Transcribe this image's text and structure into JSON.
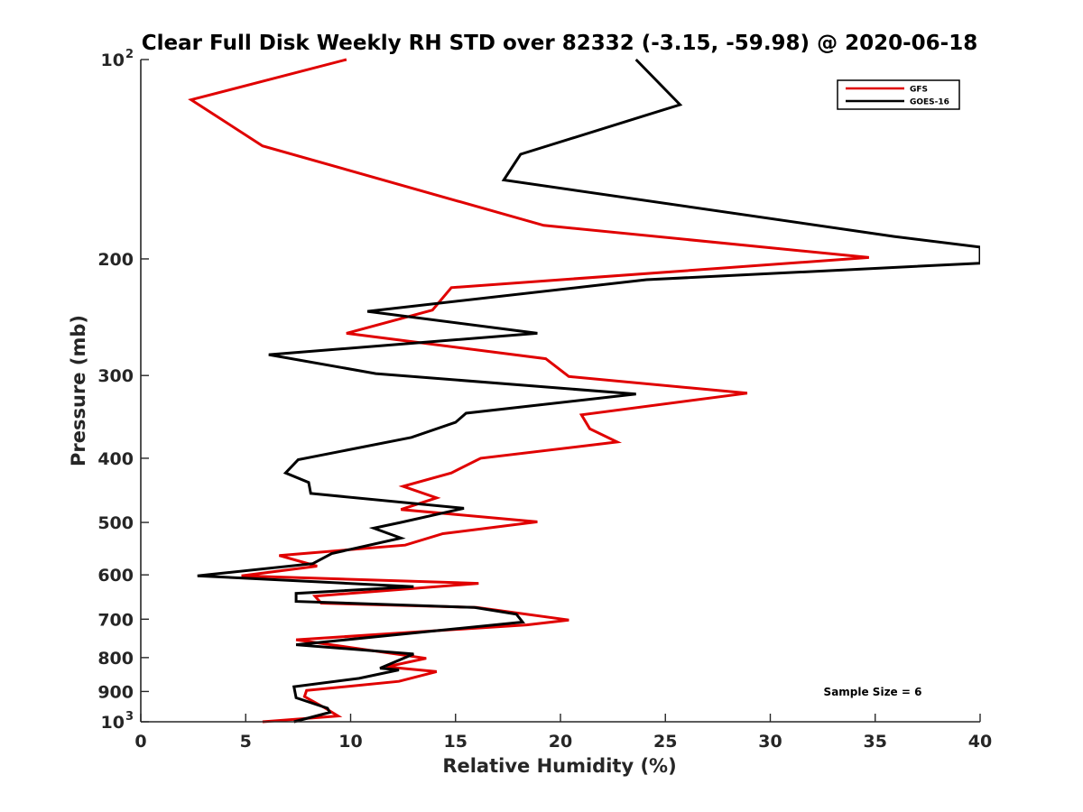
{
  "chart_data": {
    "type": "line",
    "title": "Clear Full Disk Weekly RH STD over 82332 (-3.15, -59.98) @ 2020-06-18",
    "xlabel": "Relative Humidity (%)",
    "ylabel": "Pressure (mb)",
    "xlim": [
      0,
      40
    ],
    "ylim": [
      100,
      1000
    ],
    "y_scale": "log",
    "y_reversed": true,
    "grid": false,
    "legend_position": "top-right",
    "xticks": [
      0,
      5,
      10,
      15,
      20,
      25,
      30,
      35,
      40
    ],
    "yticks": [
      {
        "value": 100,
        "label": "10",
        "sup": "2"
      },
      {
        "value": 200,
        "label": "200",
        "sup": ""
      },
      {
        "value": 300,
        "label": "300",
        "sup": ""
      },
      {
        "value": 400,
        "label": "400",
        "sup": ""
      },
      {
        "value": 500,
        "label": "500",
        "sup": ""
      },
      {
        "value": 600,
        "label": "600",
        "sup": ""
      },
      {
        "value": 700,
        "label": "700",
        "sup": ""
      },
      {
        "value": 800,
        "label": "800",
        "sup": ""
      },
      {
        "value": 900,
        "label": "900",
        "sup": ""
      },
      {
        "value": 1000,
        "label": "10",
        "sup": "3"
      }
    ],
    "series": [
      {
        "name": "GFS",
        "color": "#e00000",
        "points": [
          [
            9.8,
            100
          ],
          [
            2.4,
            115
          ],
          [
            5.8,
            135
          ],
          [
            19.2,
            178
          ],
          [
            34.7,
            199
          ],
          [
            14.8,
            221
          ],
          [
            13.9,
            239
          ],
          [
            9.8,
            259
          ],
          [
            19.3,
            283
          ],
          [
            20.4,
            301
          ],
          [
            28.9,
            319
          ],
          [
            21.0,
            344
          ],
          [
            21.4,
            361
          ],
          [
            22.7,
            378
          ],
          [
            16.2,
            400
          ],
          [
            14.8,
            421
          ],
          [
            12.5,
            441
          ],
          [
            14.1,
            459
          ],
          [
            12.4,
            478
          ],
          [
            18.9,
            499
          ],
          [
            14.4,
            520
          ],
          [
            12.6,
            541
          ],
          [
            6.6,
            561
          ],
          [
            8.4,
            582
          ],
          [
            4.8,
            602
          ],
          [
            16.1,
            618
          ],
          [
            8.3,
            646
          ],
          [
            8.6,
            662
          ],
          [
            16.0,
            672
          ],
          [
            20.4,
            702
          ],
          [
            18.4,
            714
          ],
          [
            7.4,
            752
          ],
          [
            13.6,
            802
          ],
          [
            11.7,
            826
          ],
          [
            14.1,
            840
          ],
          [
            12.3,
            869
          ],
          [
            7.9,
            897
          ],
          [
            7.8,
            916
          ],
          [
            8.8,
            954
          ],
          [
            9.4,
            980
          ],
          [
            5.8,
            1000
          ]
        ]
      },
      {
        "name": "GOES-16",
        "color": "#000000",
        "points": [
          [
            23.6,
            100
          ],
          [
            25.7,
            117
          ],
          [
            18.1,
            139
          ],
          [
            17.3,
            152
          ],
          [
            35.9,
            185
          ],
          [
            40.0,
            192
          ],
          [
            40.0,
            203
          ],
          [
            24.1,
            215
          ],
          [
            10.8,
            240
          ],
          [
            18.9,
            259
          ],
          [
            6.1,
            279
          ],
          [
            11.2,
            298
          ],
          [
            23.6,
            320
          ],
          [
            15.5,
            342
          ],
          [
            15.0,
            353
          ],
          [
            12.9,
            372
          ],
          [
            7.5,
            402
          ],
          [
            6.9,
            421
          ],
          [
            8.0,
            435
          ],
          [
            8.1,
            452
          ],
          [
            15.4,
            476
          ],
          [
            12.4,
            500
          ],
          [
            11.1,
            510
          ],
          [
            12.4,
            528
          ],
          [
            9.1,
            557
          ],
          [
            8.2,
            577
          ],
          [
            2.7,
            602
          ],
          [
            13.0,
            625
          ],
          [
            7.4,
            640
          ],
          [
            7.4,
            658
          ],
          [
            15.9,
            672
          ],
          [
            17.9,
            688
          ],
          [
            18.2,
            707
          ],
          [
            7.4,
            765
          ],
          [
            13.0,
            790
          ],
          [
            11.4,
            830
          ],
          [
            12.3,
            835
          ],
          [
            10.4,
            860
          ],
          [
            7.3,
            885
          ],
          [
            7.4,
            920
          ],
          [
            8.9,
            954
          ],
          [
            9.0,
            968
          ],
          [
            7.3,
            1000
          ]
        ]
      }
    ],
    "annotation": "Sample Size = 6"
  }
}
